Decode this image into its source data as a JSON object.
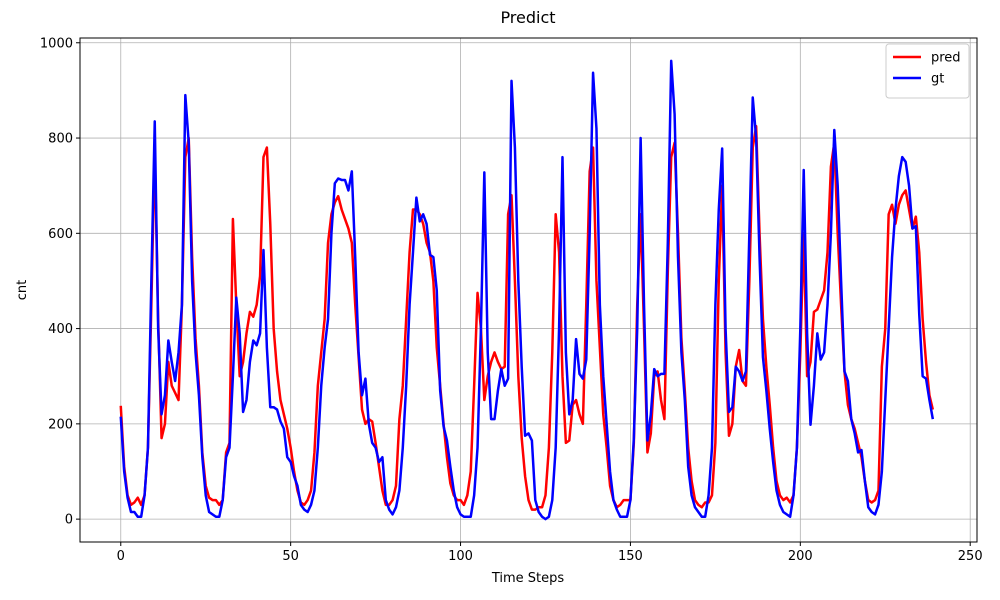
{
  "chart_data": {
    "type": "line",
    "title": "Predict",
    "x_label": "Time Steps",
    "y_label": "cnt",
    "xlim": [
      -12,
      252
    ],
    "ylim": [
      -48,
      1010
    ],
    "xticks": [
      0,
      50,
      100,
      150,
      200,
      250
    ],
    "yticks": [
      0,
      200,
      400,
      600,
      800,
      1000
    ],
    "grid": true,
    "legend": "upper right",
    "x": [
      0,
      1,
      2,
      3,
      4,
      5,
      6,
      7,
      8,
      9,
      10,
      11,
      12,
      13,
      14,
      15,
      16,
      17,
      18,
      19,
      20,
      21,
      22,
      23,
      24,
      25,
      26,
      27,
      28,
      29,
      30,
      31,
      32,
      33,
      34,
      35,
      36,
      37,
      38,
      39,
      40,
      41,
      42,
      43,
      44,
      45,
      46,
      47,
      48,
      49,
      50,
      51,
      52,
      53,
      54,
      55,
      56,
      57,
      58,
      59,
      60,
      61,
      62,
      63,
      64,
      65,
      66,
      67,
      68,
      69,
      70,
      71,
      72,
      73,
      74,
      75,
      76,
      77,
      78,
      79,
      80,
      81,
      82,
      83,
      84,
      85,
      86,
      87,
      88,
      89,
      90,
      91,
      92,
      93,
      94,
      95,
      96,
      97,
      98,
      99,
      100,
      101,
      102,
      103,
      104,
      105,
      106,
      107,
      108,
      109,
      110,
      111,
      112,
      113,
      114,
      115,
      116,
      117,
      118,
      119,
      120,
      121,
      122,
      123,
      124,
      125,
      126,
      127,
      128,
      129,
      130,
      131,
      132,
      133,
      134,
      135,
      136,
      137,
      138,
      139,
      140,
      141,
      142,
      143,
      144,
      145,
      146,
      147,
      148,
      149,
      150,
      151,
      152,
      153,
      154,
      155,
      156,
      157,
      158,
      159,
      160,
      161,
      162,
      163,
      164,
      165,
      166,
      167,
      168,
      169,
      170,
      171,
      172,
      173,
      174,
      175,
      176,
      177,
      178,
      179,
      180,
      181,
      182,
      183,
      184,
      185,
      186,
      187,
      188,
      189,
      190,
      191,
      192,
      193,
      194,
      195,
      196,
      197,
      198,
      199,
      200,
      201,
      202,
      203,
      204,
      205,
      206,
      207,
      208,
      209,
      210,
      211,
      212,
      213,
      214,
      215,
      216,
      217,
      218,
      219,
      220,
      221,
      222,
      223,
      224,
      225,
      226,
      227,
      228,
      229,
      230,
      231,
      232,
      233,
      234,
      235,
      236,
      237,
      238,
      239
    ],
    "series": [
      {
        "name": "pred",
        "color": "#ff0000",
        "values": [
          238,
          110,
          50,
          30,
          35,
          45,
          30,
          50,
          150,
          450,
          780,
          420,
          170,
          200,
          330,
          280,
          265,
          250,
          450,
          760,
          800,
          550,
          380,
          280,
          140,
          70,
          45,
          40,
          40,
          30,
          40,
          140,
          160,
          630,
          450,
          300,
          330,
          390,
          435,
          425,
          450,
          510,
          760,
          780,
          620,
          400,
          310,
          250,
          220,
          190,
          150,
          100,
          60,
          35,
          30,
          40,
          60,
          140,
          280,
          350,
          420,
          580,
          640,
          665,
          678,
          650,
          630,
          610,
          580,
          450,
          340,
          230,
          200,
          210,
          205,
          160,
          110,
          60,
          30,
          30,
          40,
          70,
          210,
          280,
          420,
          560,
          650,
          650,
          640,
          620,
          580,
          560,
          500,
          360,
          280,
          200,
          130,
          75,
          50,
          40,
          40,
          30,
          50,
          100,
          280,
          475,
          400,
          250,
          300,
          330,
          350,
          330,
          315,
          320,
          640,
          680,
          500,
          300,
          170,
          90,
          40,
          20,
          20,
          25,
          25,
          50,
          150,
          350,
          640,
          560,
          300,
          160,
          165,
          240,
          250,
          220,
          200,
          450,
          730,
          780,
          500,
          360,
          220,
          150,
          70,
          40,
          25,
          30,
          40,
          40,
          40,
          160,
          450,
          640,
          400,
          140,
          180,
          300,
          310,
          250,
          210,
          520,
          760,
          790,
          600,
          380,
          270,
          150,
          80,
          40,
          30,
          25,
          35,
          35,
          50,
          160,
          500,
          700,
          350,
          175,
          200,
          320,
          355,
          290,
          280,
          500,
          780,
          825,
          600,
          420,
          320,
          240,
          150,
          80,
          50,
          40,
          45,
          35,
          50,
          150,
          350,
          600,
          300,
          330,
          435,
          440,
          460,
          480,
          560,
          740,
          790,
          600,
          450,
          310,
          240,
          210,
          190,
          160,
          130,
          80,
          40,
          35,
          40,
          60,
          320,
          400,
          640,
          660,
          620,
          660,
          680,
          690,
          650,
          610,
          635,
          560,
          420,
          330,
          260,
          230
        ]
      },
      {
        "name": "gt",
        "color": "#0000ff",
        "values": [
          215,
          100,
          45,
          15,
          15,
          5,
          5,
          50,
          150,
          500,
          835,
          400,
          220,
          260,
          375,
          330,
          290,
          350,
          450,
          890,
          790,
          500,
          350,
          260,
          130,
          50,
          15,
          10,
          5,
          5,
          40,
          130,
          150,
          300,
          465,
          390,
          225,
          250,
          330,
          375,
          365,
          390,
          565,
          360,
          235,
          235,
          230,
          205,
          190,
          130,
          120,
          90,
          70,
          30,
          20,
          15,
          30,
          60,
          150,
          280,
          360,
          420,
          600,
          705,
          715,
          712,
          712,
          690,
          730,
          550,
          350,
          260,
          295,
          200,
          160,
          150,
          120,
          130,
          40,
          20,
          10,
          25,
          60,
          150,
          280,
          450,
          560,
          675,
          625,
          640,
          620,
          555,
          550,
          480,
          270,
          195,
          165,
          110,
          60,
          25,
          10,
          5,
          5,
          5,
          50,
          150,
          400,
          728,
          350,
          210,
          210,
          270,
          315,
          280,
          295,
          920,
          780,
          500,
          320,
          175,
          180,
          165,
          40,
          15,
          5,
          0,
          5,
          40,
          150,
          400,
          760,
          350,
          220,
          250,
          378,
          305,
          295,
          335,
          600,
          937,
          820,
          450,
          300,
          200,
          100,
          40,
          20,
          5,
          5,
          5,
          40,
          170,
          400,
          800,
          450,
          165,
          220,
          315,
          300,
          305,
          305,
          580,
          962,
          850,
          550,
          350,
          250,
          110,
          50,
          25,
          15,
          5,
          5,
          50,
          150,
          450,
          650,
          778,
          400,
          225,
          235,
          320,
          310,
          290,
          310,
          600,
          885,
          800,
          550,
          340,
          270,
          190,
          120,
          60,
          30,
          15,
          10,
          5,
          50,
          150,
          400,
          733,
          390,
          198,
          280,
          390,
          335,
          350,
          450,
          600,
          817,
          700,
          500,
          310,
          290,
          210,
          180,
          140,
          145,
          80,
          25,
          15,
          10,
          30,
          100,
          250,
          400,
          550,
          650,
          720,
          760,
          750,
          700,
          610,
          615,
          430,
          300,
          295,
          250,
          210
        ]
      }
    ]
  }
}
